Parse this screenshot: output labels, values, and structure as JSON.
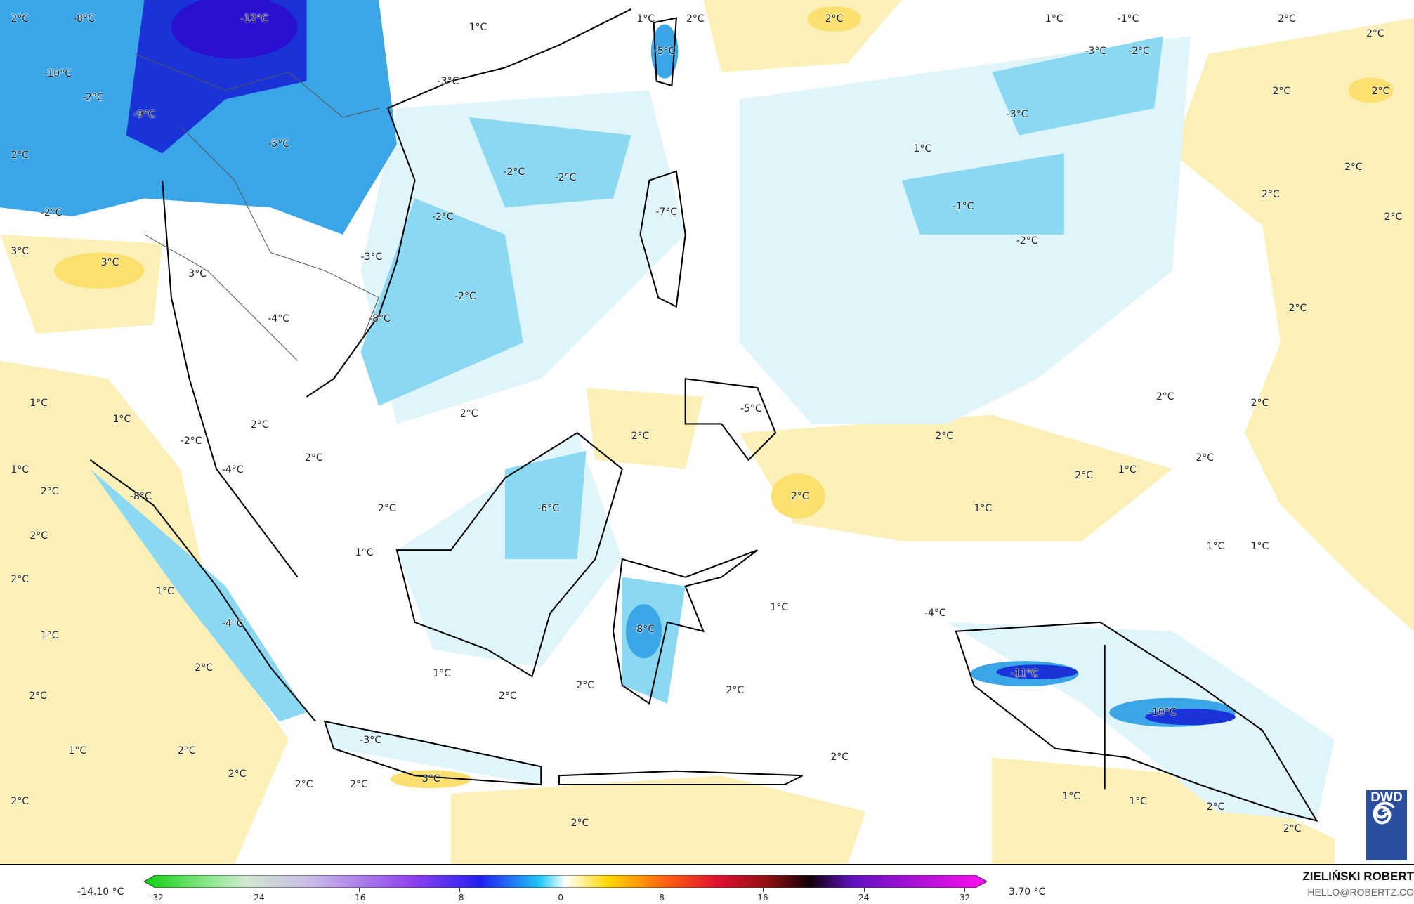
{
  "map": {
    "labels": [
      "-12°C",
      "-8°C",
      "2°C",
      "1°C",
      "1°C",
      "2°C",
      "2°C",
      "1°C",
      "-1°C",
      "2°C",
      "2°C",
      "-5°C",
      "-3°C",
      "-2°C",
      "-10°C",
      "-2°C",
      "-3°C",
      "2°C",
      "2°C",
      "-9°C",
      "-3°C",
      "-5°C",
      "1°C",
      "2°C",
      "-2°C",
      "-2°C",
      "2°C",
      "2°C",
      "-1°C",
      "-2°C",
      "-2°C",
      "-7°C",
      "2°C",
      "-2°C",
      "3°C",
      "3°C",
      "3°C",
      "-3°C",
      "-2°C",
      "2°C",
      "-4°C",
      "-8°C",
      "1°C",
      "1°C",
      "2°C",
      "2°C",
      "-5°C",
      "2°C",
      "2°C",
      "-2°C",
      "2°C",
      "2°C",
      "2°C",
      "1°C",
      "-4°C",
      "2°C",
      "2°C",
      "1°C",
      "2°C",
      "-8°C",
      "-6°C",
      "2°C",
      "2°C",
      "1°C",
      "2°C",
      "1°C",
      "1°C",
      "1°C",
      "2°C",
      "1°C",
      "1°C",
      "-4°C",
      "-4°C",
      "1°C",
      "-8°C",
      "2°C",
      "1°C",
      "-11°C",
      "2°C",
      "2°C",
      "2°C",
      "2°C",
      "-10°C",
      "1°C",
      "2°C",
      "-3°C",
      "2°C",
      "2°C",
      "2°C",
      "3°C",
      "2°C",
      "2°C",
      "1°C",
      "1°C",
      "2°C",
      "2°C",
      "2°C"
    ],
    "colors": {
      "cold_light": "#dff4fb",
      "cold_mid": "#8ad8f2",
      "cold": "#3aa6e8",
      "cold_deep": "#1a33d6",
      "very_cold": "#2a10d0",
      "warm_light": "#fbf0b8",
      "warm": "#fbe070",
      "land_outline": "#000000"
    }
  },
  "colorbar": {
    "ticks": [
      "-32",
      "-24",
      "-16",
      "-8",
      "0",
      "8",
      "16",
      "24",
      "32"
    ],
    "min_label": "-14.10 °C",
    "max_label": "3.70 °C"
  },
  "credit": {
    "name": "ZIELIŃSKI ROBERT",
    "email": "HELLO@ROBERTZ.CO"
  },
  "logo": {
    "text": "DWD"
  }
}
